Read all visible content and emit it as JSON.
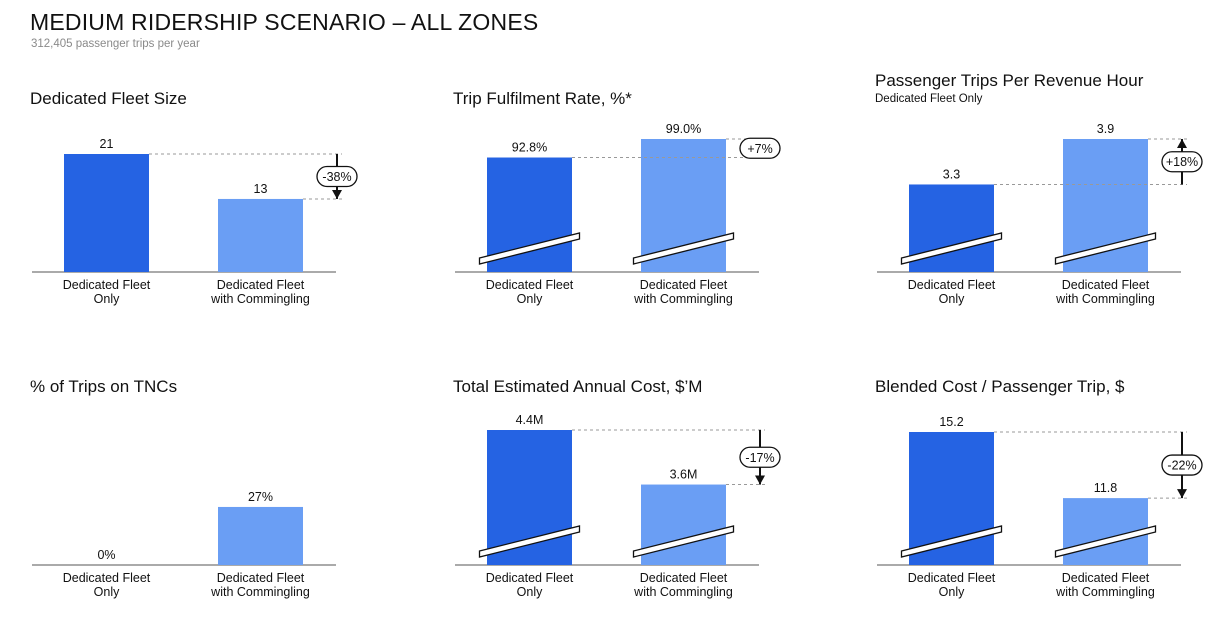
{
  "page": {
    "title": "MEDIUM RIDERSHIP SCENARIO – ALL ZONES",
    "subtitle": "312,405 passenger trips per year"
  },
  "colors": {
    "dark_bar": "#2563e3",
    "light_bar": "#6a9ef4"
  },
  "categories": [
    [
      "Dedicated Fleet",
      "Only"
    ],
    [
      "Dedicated Fleet",
      "with Commingling"
    ]
  ],
  "chart_data": [
    {
      "type": "bar",
      "title": "Dedicated Fleet Size",
      "subtitle": "",
      "values": [
        21,
        13
      ],
      "value_labels": [
        "21",
        "13"
      ],
      "change_label": "-38%",
      "change_direction": "down",
      "axis_break": false,
      "ylim": [
        0,
        21
      ]
    },
    {
      "type": "bar",
      "title": "Trip Fulfilment Rate, %*",
      "subtitle": "",
      "values": [
        92.8,
        99.0
      ],
      "value_labels": [
        "92.8%",
        "99.0%"
      ],
      "change_label": "+7%",
      "change_direction": "up",
      "axis_break": true,
      "ylim": [
        0,
        99.0
      ]
    },
    {
      "type": "bar",
      "title": "Passenger Trips Per Revenue Hour",
      "subtitle": "Dedicated Fleet Only",
      "values": [
        3.3,
        3.9
      ],
      "value_labels": [
        "3.3",
        "3.9"
      ],
      "change_label": "+18%",
      "change_direction": "up",
      "axis_break": true,
      "ylim": [
        0,
        3.9
      ]
    },
    {
      "type": "bar",
      "title": "% of Trips on TNCs",
      "subtitle": "",
      "values": [
        0,
        27
      ],
      "value_labels": [
        "0%",
        "27%"
      ],
      "change_label": "",
      "change_direction": "",
      "axis_break": false,
      "ylim": [
        0,
        100
      ]
    },
    {
      "type": "bar",
      "title": "Total Estimated Annual Cost, $’M",
      "subtitle": "",
      "values": [
        4.4,
        3.6
      ],
      "value_labels": [
        "4.4M",
        "3.6M"
      ],
      "change_label": "-17%",
      "change_direction": "down",
      "axis_break": true,
      "ylim": [
        0,
        4.4
      ]
    },
    {
      "type": "bar",
      "title": "Blended Cost / Passenger Trip, $",
      "subtitle": "",
      "values": [
        15.2,
        11.8
      ],
      "value_labels": [
        "15.2",
        "11.8"
      ],
      "change_label": "-22%",
      "change_direction": "down",
      "axis_break": true,
      "ylim": [
        0,
        15.2
      ]
    }
  ]
}
